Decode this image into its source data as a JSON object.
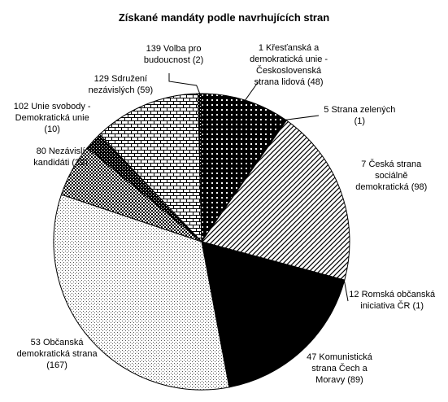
{
  "chart_data": {
    "type": "pie",
    "title": "Získané mandáty podle navrhujících stran",
    "slices": [
      {
        "label_lines": [
          "1 Křesťanská a",
          "demokratická unie -",
          "Československá",
          "strana lidová (48)"
        ],
        "value": 48,
        "fill": "solid-cross",
        "color": "#000000"
      },
      {
        "label_lines": [
          "5 Strana zelených",
          "(1)"
        ],
        "value": 1,
        "fill": "solid",
        "color": "#000000"
      },
      {
        "label_lines": [
          "7 Česká strana",
          "sociálně",
          "demokratická (98)"
        ],
        "value": 98,
        "fill": "diagonal",
        "color": "#000000"
      },
      {
        "label_lines": [
          "12 Romská občanská",
          "iniciativa ČR (1)"
        ],
        "value": 1,
        "fill": "solid",
        "color": "#000000"
      },
      {
        "label_lines": [
          "47 Komunistická",
          "strana Čech a",
          "Moravy (89)"
        ],
        "value": 89,
        "fill": "solid",
        "color": "#000000"
      },
      {
        "label_lines": [
          "53 Občanská",
          "demokratická strana",
          "(167)"
        ],
        "value": 167,
        "fill": "light-dots",
        "color": "#000000"
      },
      {
        "label_lines": [
          "80 Nezávislí",
          "kandidáti (29)"
        ],
        "value": 29,
        "fill": "checker",
        "color": "#000000"
      },
      {
        "label_lines": [
          "102 Unie svobody -",
          "Demokratická unie",
          "(10)"
        ],
        "value": 10,
        "fill": "dark-check",
        "color": "#000000"
      },
      {
        "label_lines": [
          "129 Sdružení",
          "nezávislých (59)"
        ],
        "value": 59,
        "fill": "brick",
        "color": "#000000"
      },
      {
        "label_lines": [
          "139 Volba pro",
          "budoucnost (2)"
        ],
        "value": 2,
        "fill": "dark-check",
        "color": "#000000"
      }
    ]
  }
}
